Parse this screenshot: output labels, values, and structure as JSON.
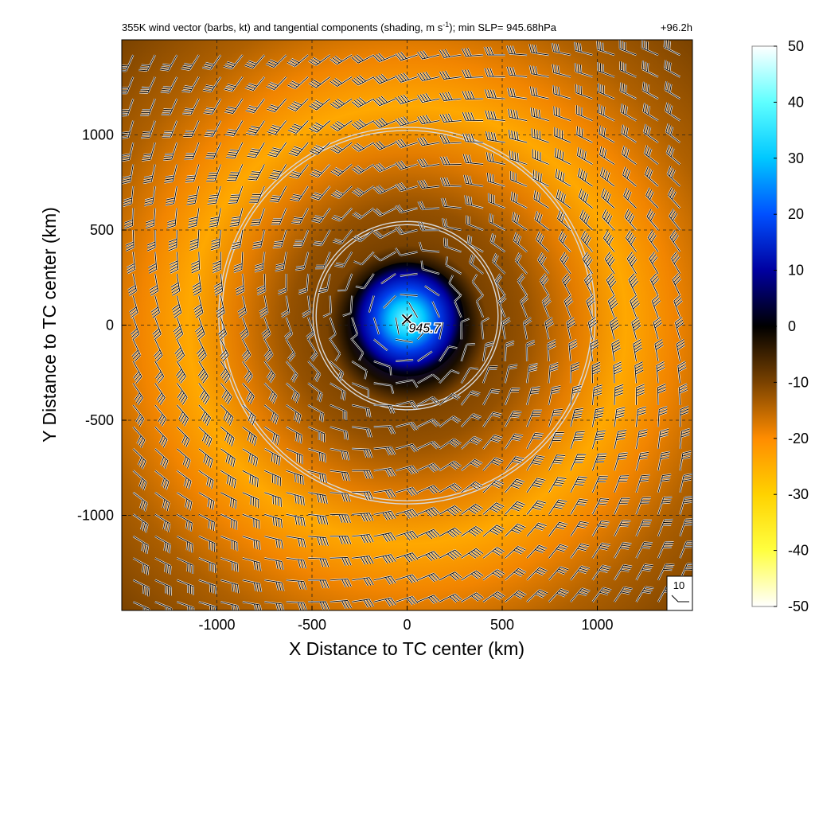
{
  "chart_data": {
    "type": "heatmap",
    "title_main": "355K wind vector (barbs, kt) and tangential components (shading, m s",
    "title_sup": "-1",
    "title_tail": "); min SLP= 945.68hPa",
    "time_label": "+96.2h",
    "xlabel": "X Distance to TC center (km)",
    "ylabel": "Y Distance to TC center (km)",
    "xlim": [
      -1500,
      1500
    ],
    "ylim": [
      -1500,
      1500
    ],
    "xticks": [
      -1000,
      -500,
      0,
      500,
      1000
    ],
    "yticks": [
      -1000,
      -500,
      0,
      500,
      1000
    ],
    "grid": "dashed",
    "colorbar": {
      "range": [
        -50,
        50
      ],
      "ticks": [
        50,
        40,
        30,
        20,
        10,
        0,
        -10,
        -20,
        -30,
        -40,
        -50
      ],
      "colors": [
        {
          "value": 50,
          "color": "#ffffff"
        },
        {
          "value": 40,
          "color": "#5fffff"
        },
        {
          "value": 30,
          "color": "#00c8ff"
        },
        {
          "value": 20,
          "color": "#0050ff"
        },
        {
          "value": 10,
          "color": "#0000a0"
        },
        {
          "value": 0,
          "color": "#000000"
        },
        {
          "value": -10,
          "color": "#7a4200"
        },
        {
          "value": -20,
          "color": "#ff8c00"
        },
        {
          "value": -30,
          "color": "#ffd200"
        },
        {
          "value": -40,
          "color": "#ffff40"
        },
        {
          "value": -50,
          "color": "#ffffff"
        }
      ]
    },
    "center_marker": {
      "x_km": 0,
      "y_km": 30,
      "label": "945.7"
    },
    "range_rings_km": [
      {
        "x_km": 0,
        "y_km": 50,
        "radius": 495
      },
      {
        "x_km": 0,
        "y_km": 50,
        "radius": 990
      }
    ],
    "reference_barb": {
      "label": "10"
    },
    "field_features": {
      "tangential_ring_max": {
        "radius_km": 1150,
        "value": -24
      },
      "inner_core": {
        "radius_km": 300,
        "value": 25
      }
    }
  }
}
